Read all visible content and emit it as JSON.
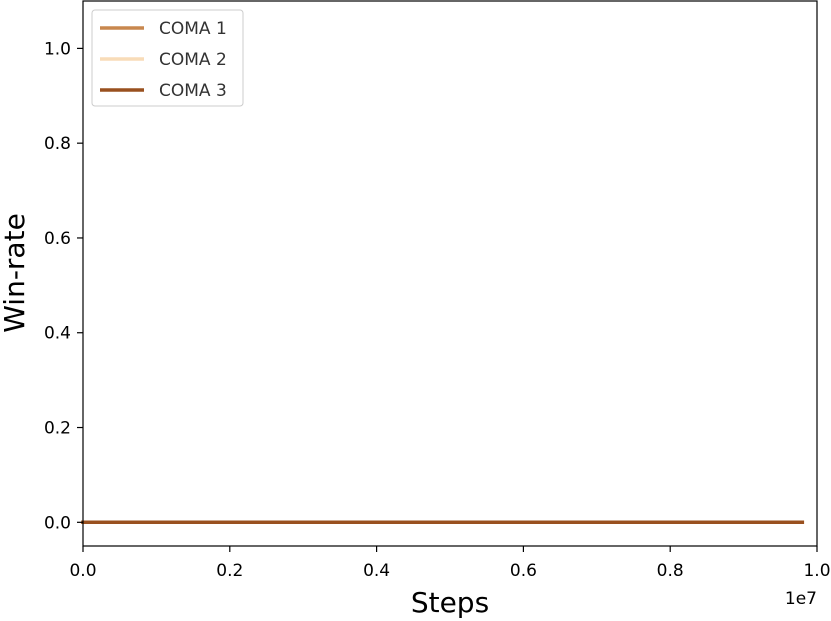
{
  "chart_data": {
    "type": "line",
    "title": "",
    "xlabel": "Steps",
    "ylabel": "Win-rate",
    "x_offset_label": "1e7",
    "xlim": [
      0.0,
      1.0
    ],
    "ylim": [
      -0.05,
      1.1
    ],
    "x_ticks": [
      0.0,
      0.2,
      0.4,
      0.6,
      0.8,
      1.0
    ],
    "x_tick_labels": [
      "0.0",
      "0.2",
      "0.4",
      "0.6",
      "0.8",
      "1.0"
    ],
    "y_ticks": [
      0.0,
      0.2,
      0.4,
      0.6,
      0.8,
      1.0
    ],
    "y_tick_labels": [
      "0.0",
      "0.2",
      "0.4",
      "0.6",
      "0.8",
      "1.0"
    ],
    "grid": false,
    "legend_position": "top-left",
    "series": [
      {
        "name": "COMA 1",
        "color": "#c8874e",
        "x": [
          0.0,
          0.98
        ],
        "y": [
          0.0,
          0.0
        ]
      },
      {
        "name": "COMA 2",
        "color": "#f8dcb8",
        "x": [
          0.0,
          0.98
        ],
        "y": [
          0.0,
          0.0
        ]
      },
      {
        "name": "COMA 3",
        "color": "#99501f",
        "x": [
          0.0,
          0.98
        ],
        "y": [
          0.0,
          0.0
        ]
      }
    ]
  }
}
